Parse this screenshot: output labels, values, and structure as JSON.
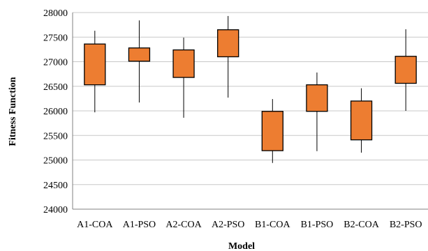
{
  "chart_data": {
    "type": "box",
    "xlabel": "Model",
    "ylabel": "Fitness Function",
    "ylim": [
      24000,
      28000
    ],
    "yticks": [
      24000,
      24500,
      25000,
      25500,
      26000,
      26500,
      27000,
      27500,
      28000
    ],
    "grid": true,
    "colors": {
      "box_fill": "#ED7D31",
      "box_stroke": "#000000",
      "grid": "#C8C8C8",
      "axis": "#808080"
    },
    "categories": [
      "A1-COA",
      "A1-PSO",
      "A2-COA",
      "A2-PSO",
      "B1-COA",
      "B1-PSO",
      "B2-COA",
      "B2-PSO"
    ],
    "boxes": [
      {
        "label": "A1-COA",
        "min": 25970,
        "q1": 26530,
        "q3": 27360,
        "max": 27630
      },
      {
        "label": "A1-PSO",
        "min": 26170,
        "q1": 27010,
        "q3": 27280,
        "max": 27840
      },
      {
        "label": "A2-COA",
        "min": 25860,
        "q1": 26680,
        "q3": 27240,
        "max": 27490
      },
      {
        "label": "A2-PSO",
        "min": 26270,
        "q1": 27100,
        "q3": 27650,
        "max": 27930
      },
      {
        "label": "B1-COA",
        "min": 24940,
        "q1": 25190,
        "q3": 25990,
        "max": 26240
      },
      {
        "label": "B1-PSO",
        "min": 25180,
        "q1": 25990,
        "q3": 26530,
        "max": 26780
      },
      {
        "label": "B2-COA",
        "min": 25150,
        "q1": 25410,
        "q3": 26200,
        "max": 26460
      },
      {
        "label": "B2-PSO",
        "min": 26000,
        "q1": 26560,
        "q3": 27110,
        "max": 27660
      }
    ]
  }
}
